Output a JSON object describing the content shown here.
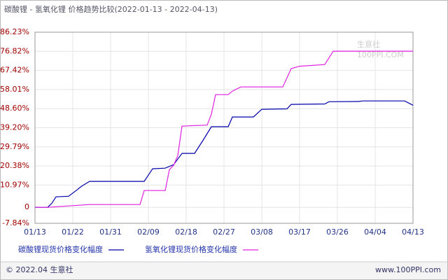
{
  "chart_data": {
    "type": "line",
    "title": "碳酸锂 - 氢氧化锂 价格趋势比较(2022-01-13 - 2022-04-13)",
    "watermark": [
      "生意社",
      "100PPI.COM"
    ],
    "footer": {
      "left": "© 2022.04 生意社",
      "right": "www.100PPI.com"
    },
    "xlim": [
      "01/13",
      "04/13"
    ],
    "xticks": [
      "01/13",
      "01/22",
      "01/31",
      "02/09",
      "02/18",
      "02/27",
      "03/08",
      "03/17",
      "03/26",
      "04/04",
      "04/13"
    ],
    "ylim": [
      -7.84,
      86.23
    ],
    "yticks": [
      {
        "value": -7.84,
        "label": "-7.84%"
      },
      0,
      {
        "value": 10.97,
        "label": "10.97%"
      },
      {
        "value": 20.38,
        "label": "20.38%"
      },
      {
        "value": 29.79,
        "label": "29.79%"
      },
      {
        "value": 39.2,
        "label": "39.20%"
      },
      {
        "value": 48.6,
        "label": "48.60%"
      },
      {
        "value": 58.01,
        "label": "58.01%"
      },
      {
        "value": 67.42,
        "label": "67.42%"
      },
      {
        "value": 76.82,
        "label": "76.82%"
      },
      {
        "value": 86.23,
        "label": "86.23%"
      }
    ],
    "grid": true,
    "series": [
      {
        "name": "碳酸锂现货价格变化幅度",
        "color": "#0000aa",
        "x": [
          "01/13",
          "01/16",
          "01/17",
          "01/18",
          "01/21",
          "01/23",
          "01/24",
          "01/26",
          "02/08",
          "02/09",
          "02/10",
          "02/13",
          "02/15",
          "02/16",
          "02/17",
          "02/20",
          "02/22",
          "02/24",
          "02/28",
          "03/01",
          "03/06",
          "03/08",
          "03/14",
          "03/15",
          "03/23",
          "03/24",
          "03/31",
          "04/01",
          "04/11",
          "04/13"
        ],
        "values": [
          0,
          0,
          2,
          5.2,
          5.5,
          8.6,
          10.3,
          12.8,
          12.8,
          15.9,
          19,
          19.3,
          21,
          23.8,
          26.6,
          26.6,
          33,
          39.7,
          39.7,
          44.5,
          44.5,
          48.3,
          48.5,
          50.7,
          50.9,
          52,
          52.1,
          52.4,
          52.4,
          50.3
        ]
      },
      {
        "name": "氢氧化锂现货价格变化幅度",
        "color": "#e020e0",
        "x": [
          "01/13",
          "01/16",
          "01/21",
          "01/26",
          "02/07",
          "02/08",
          "02/13",
          "02/14",
          "02/15",
          "02/16",
          "02/17",
          "02/23",
          "02/24",
          "02/25",
          "02/28",
          "03/01",
          "03/03",
          "03/13",
          "03/15",
          "03/17",
          "03/23",
          "03/25",
          "04/13"
        ],
        "values": [
          0,
          0,
          0.7,
          1.4,
          1.4,
          8.3,
          8.3,
          18.6,
          20.7,
          25.5,
          40,
          40.5,
          45.9,
          55.5,
          55.5,
          57.2,
          59.3,
          59.3,
          68.3,
          69.5,
          70.3,
          76.9,
          76.9
        ]
      }
    ]
  }
}
